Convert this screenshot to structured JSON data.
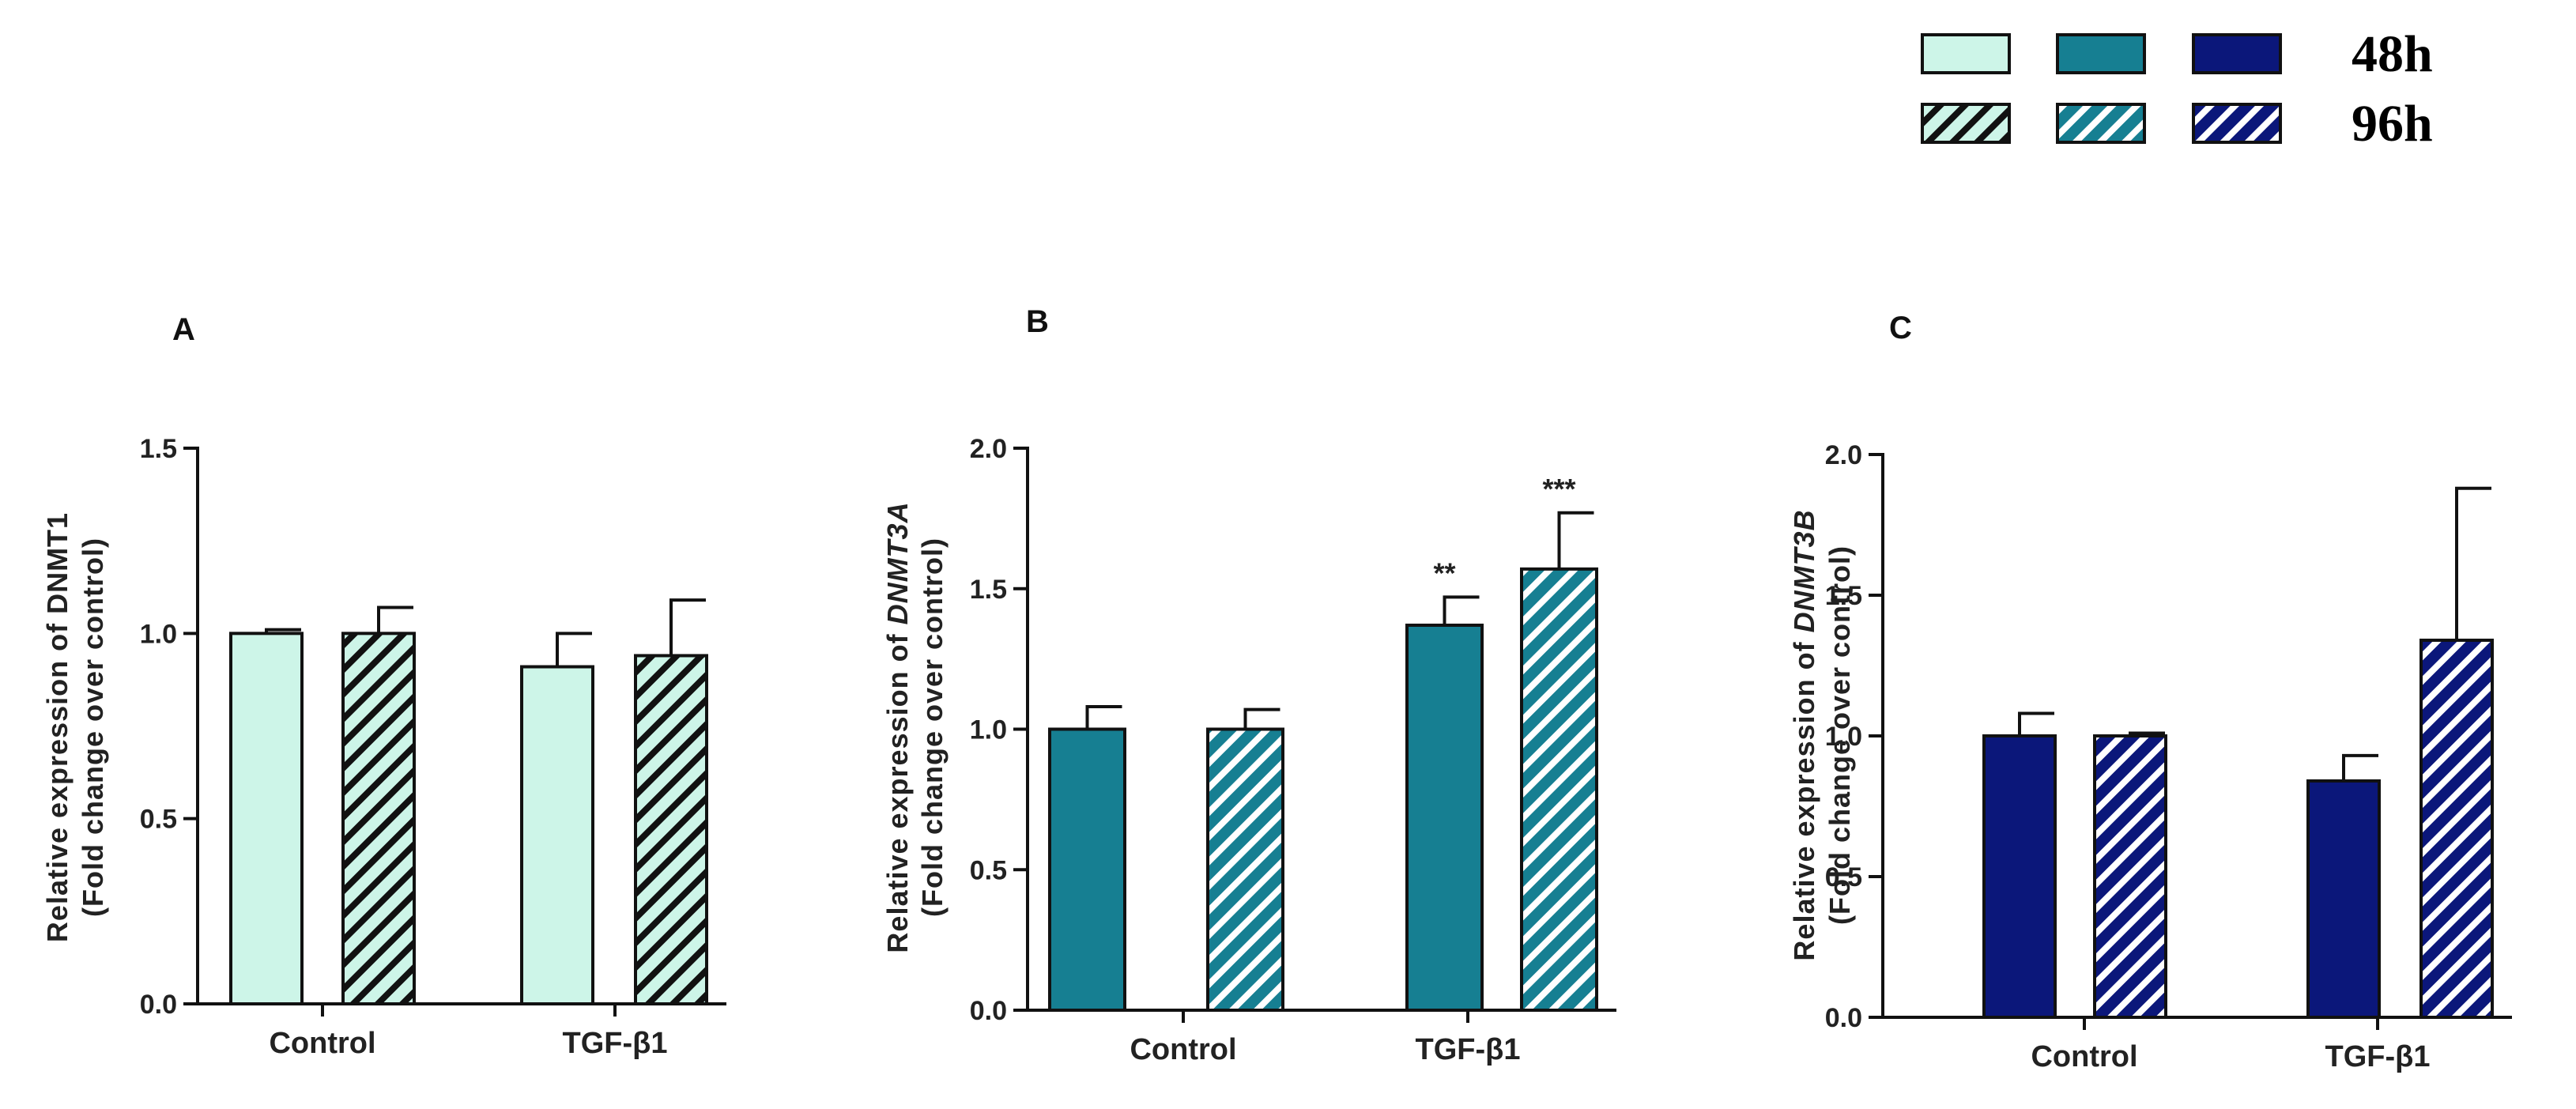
{
  "legend": {
    "rows": [
      {
        "label": "48h",
        "pattern": "solid"
      },
      {
        "label": "96h",
        "pattern": "hatched"
      }
    ],
    "colors": [
      "#cdf5e8",
      "#167f92",
      "#0b177a"
    ]
  },
  "chart_data": [
    {
      "type": "bar",
      "panel": "A",
      "ylabel_line1": "Relative expression of DNMT1",
      "ylabel_line2": "(Fold change over control)",
      "categories": [
        "Control",
        "TGF-β1"
      ],
      "ylim": [
        0,
        1.5
      ],
      "yticks": [
        0.0,
        0.5,
        1.0,
        1.5
      ],
      "color": "#cdf5e8",
      "hatch_color": "#111111",
      "series": [
        {
          "name": "48h",
          "pattern": "solid",
          "values": [
            1.0,
            0.91
          ],
          "errors": [
            0.01,
            0.09
          ],
          "sig": [
            "",
            ""
          ]
        },
        {
          "name": "96h",
          "pattern": "hatched",
          "values": [
            1.0,
            0.94
          ],
          "errors": [
            0.07,
            0.15
          ],
          "sig": [
            "",
            ""
          ]
        }
      ]
    },
    {
      "type": "bar",
      "panel": "B",
      "ylabel_line1_prefix": "Relative expression of ",
      "ylabel_line1_gene": "DNMT3A",
      "ylabel_line2": "(Fold change over control)",
      "categories": [
        "Control",
        "TGF-β1"
      ],
      "ylim": [
        0,
        2.0
      ],
      "yticks": [
        0.0,
        0.5,
        1.0,
        1.5,
        2.0
      ],
      "color": "#167f92",
      "hatch_color": "#ffffff",
      "series": [
        {
          "name": "48h",
          "pattern": "solid",
          "values": [
            1.0,
            1.37
          ],
          "errors": [
            0.08,
            0.1
          ],
          "sig": [
            "",
            "**"
          ]
        },
        {
          "name": "96h",
          "pattern": "hatched",
          "values": [
            1.0,
            1.57
          ],
          "errors": [
            0.07,
            0.2
          ],
          "sig": [
            "",
            "***"
          ]
        }
      ]
    },
    {
      "type": "bar",
      "panel": "C",
      "ylabel_line1_prefix": "Relative expression of ",
      "ylabel_line1_gene": "DNMT3B",
      "ylabel_line2": "(Fold change over control)",
      "categories": [
        "Control",
        "TGF-β1"
      ],
      "ylim": [
        0,
        2.0
      ],
      "yticks": [
        0.0,
        0.5,
        1.0,
        1.5,
        2.0
      ],
      "color": "#0b177a",
      "hatch_color": "#ffffff",
      "series": [
        {
          "name": "48h",
          "pattern": "solid",
          "values": [
            1.0,
            0.84
          ],
          "errors": [
            0.08,
            0.09
          ],
          "sig": [
            "",
            ""
          ]
        },
        {
          "name": "96h",
          "pattern": "hatched",
          "values": [
            1.0,
            1.34
          ],
          "errors": [
            0.01,
            0.54
          ],
          "sig": [
            "",
            ""
          ]
        }
      ]
    }
  ]
}
